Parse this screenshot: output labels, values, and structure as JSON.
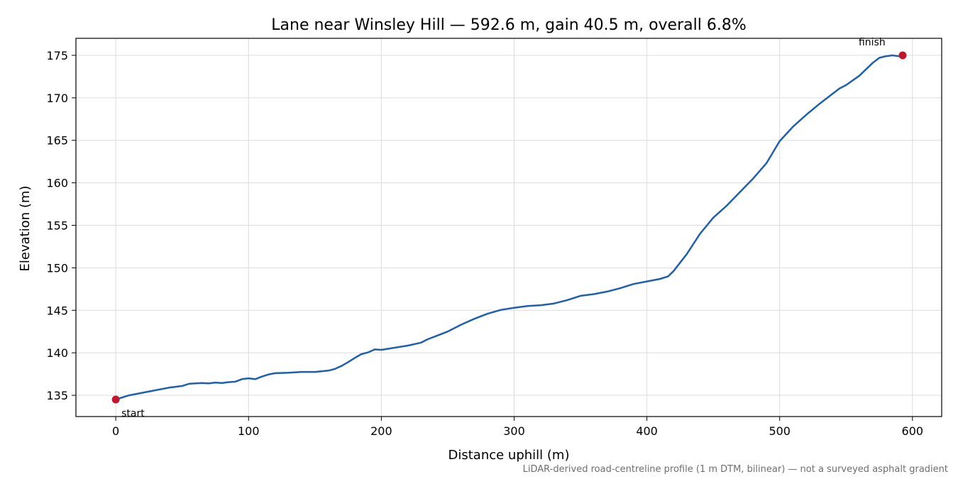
{
  "chart_data": {
    "type": "line",
    "title": "Lane near Winsley Hill — 592.6 m, gain 40.5 m, overall 6.8%",
    "xlabel": "Distance uphill (m)",
    "ylabel": "Elevation (m)",
    "xlim": [
      -30,
      622
    ],
    "ylim": [
      132.5,
      177
    ],
    "xticks": [
      0,
      100,
      200,
      300,
      400,
      500,
      600
    ],
    "yticks": [
      135,
      140,
      145,
      150,
      155,
      160,
      165,
      170,
      175
    ],
    "grid": true,
    "footnote": "LiDAR-derived road-centreline profile (1 m DTM, bilinear) — not a surveyed asphalt gradient",
    "series_color": "#1f5fb0",
    "marker_color": "#c0182a",
    "series": [
      {
        "x": [
          0,
          10,
          20,
          30,
          40,
          50,
          55,
          60,
          65,
          70,
          75,
          80,
          85,
          90,
          95,
          100,
          105,
          110,
          115,
          120,
          130,
          140,
          150,
          160,
          165,
          170,
          175,
          180,
          185,
          190,
          195,
          200,
          210,
          220,
          230,
          235,
          240,
          250,
          260,
          270,
          280,
          290,
          300,
          310,
          320,
          330,
          340,
          350,
          360,
          370,
          380,
          390,
          400,
          410,
          416,
          420,
          430,
          440,
          450,
          460,
          470,
          480,
          490,
          500,
          510,
          520,
          530,
          540,
          545,
          550,
          560,
          570,
          575,
          580,
          585,
          590,
          592.6
        ],
        "y": [
          134.5,
          135.0,
          135.3,
          135.6,
          135.9,
          136.1,
          136.35,
          136.4,
          136.45,
          136.4,
          136.5,
          136.45,
          136.55,
          136.6,
          136.9,
          137.0,
          136.9,
          137.2,
          137.45,
          137.6,
          137.65,
          137.75,
          137.75,
          137.9,
          138.1,
          138.45,
          138.9,
          139.4,
          139.85,
          140.05,
          140.4,
          140.35,
          140.6,
          140.85,
          141.2,
          141.6,
          141.9,
          142.5,
          143.3,
          144.0,
          144.6,
          145.05,
          145.3,
          145.5,
          145.6,
          145.8,
          146.2,
          146.7,
          146.9,
          147.2,
          147.6,
          148.1,
          148.4,
          148.7,
          149.0,
          149.6,
          151.6,
          154.0,
          155.9,
          157.3,
          158.9,
          160.5,
          162.3,
          164.9,
          166.6,
          168.0,
          169.3,
          170.5,
          171.1,
          171.5,
          172.6,
          174.1,
          174.7,
          174.9,
          175.0,
          174.9,
          175.0
        ]
      }
    ],
    "annotations": [
      {
        "label": "start",
        "x": 0,
        "y": 134.5
      },
      {
        "label": "finish",
        "x": 592.6,
        "y": 175.0
      }
    ]
  }
}
